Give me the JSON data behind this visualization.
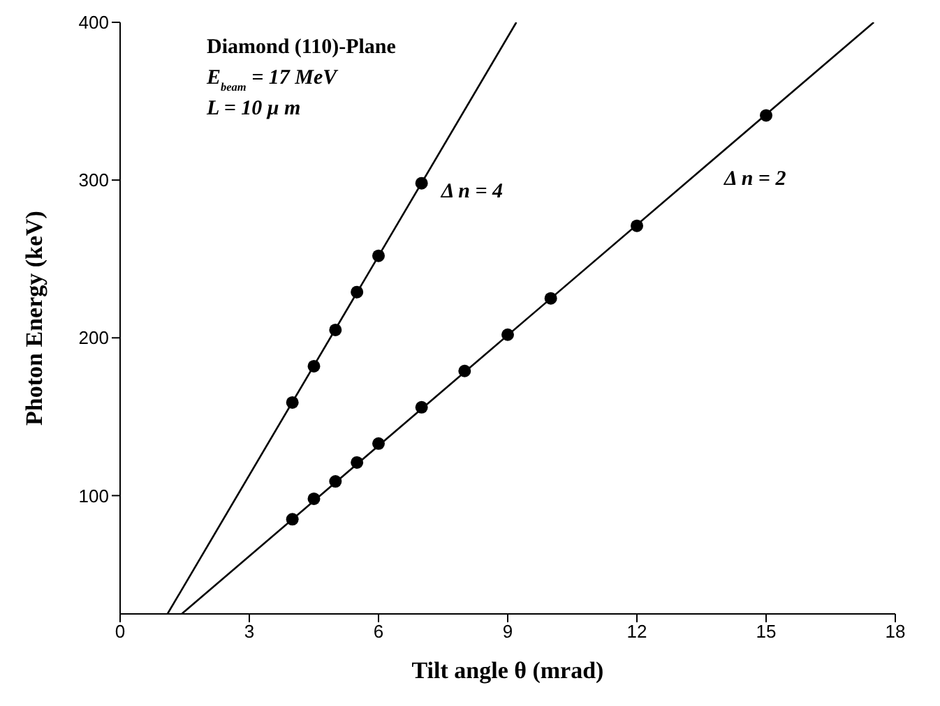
{
  "chart_data": {
    "type": "scatter",
    "xlabel": "Tilt angle θ (mrad)",
    "ylabel": "Photon Energy (keV)",
    "xlim": [
      0,
      18
    ],
    "xticks": [
      0,
      3,
      6,
      9,
      12,
      15,
      18
    ],
    "ylim": [
      25,
      400
    ],
    "yticks": [
      100,
      200,
      300,
      400
    ],
    "grid": false,
    "legend": false,
    "marker": "circle",
    "annotations": [
      "Diamond (110)-Plane",
      "E$_{beam}$ = 17 MeV",
      "L = 10 μ m"
    ],
    "series": [
      {
        "name": "Δ n = 4",
        "color": "#000000",
        "x": [
          4,
          4.5,
          5,
          5.5,
          6,
          7
        ],
        "values": [
          159,
          182,
          205,
          229,
          252,
          298
        ]
      },
      {
        "name": "Δ n = 2",
        "color": "#000000",
        "x": [
          4,
          4.5,
          5,
          5.5,
          6,
          7,
          8,
          9,
          10,
          12,
          15
        ],
        "values": [
          85,
          98,
          109,
          121,
          133,
          156,
          179,
          202,
          225,
          271,
          341
        ]
      },
      {
        "type": "line",
        "color": "#000000",
        "marker": "none",
        "line_style": "solid",
        "x": [
          1.1,
          9.2
        ],
        "values": [
          25,
          400
        ]
      },
      {
        "type": "line",
        "color": "#000000",
        "marker": "none",
        "line_style": "solid",
        "x": [
          1.43,
          17.5
        ],
        "values": [
          25,
          400
        ]
      }
    ]
  }
}
